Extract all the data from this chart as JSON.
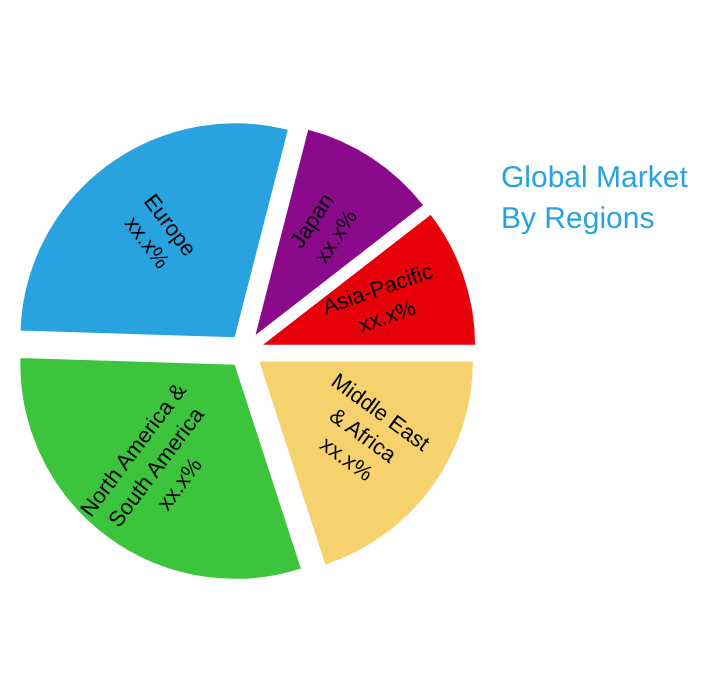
{
  "chart_data": {
    "type": "pie",
    "title": "Global Market\nBy Regions",
    "categories": [
      "Asia-Pacific",
      "Japan",
      "Europe",
      "North America &\nSouth America",
      "Middle East\n& Africa"
    ],
    "values": [
      10.5,
      10.5,
      28.5,
      30.5,
      20
    ],
    "colors": [
      "#e8000b",
      "#8b0a8b",
      "#29a3e0",
      "#3cc43c",
      "#f5d26e"
    ],
    "value_labels": [
      "xx.x%",
      "xx.x%",
      "xx.x%",
      "xx.x%",
      "xx.x%"
    ]
  }
}
